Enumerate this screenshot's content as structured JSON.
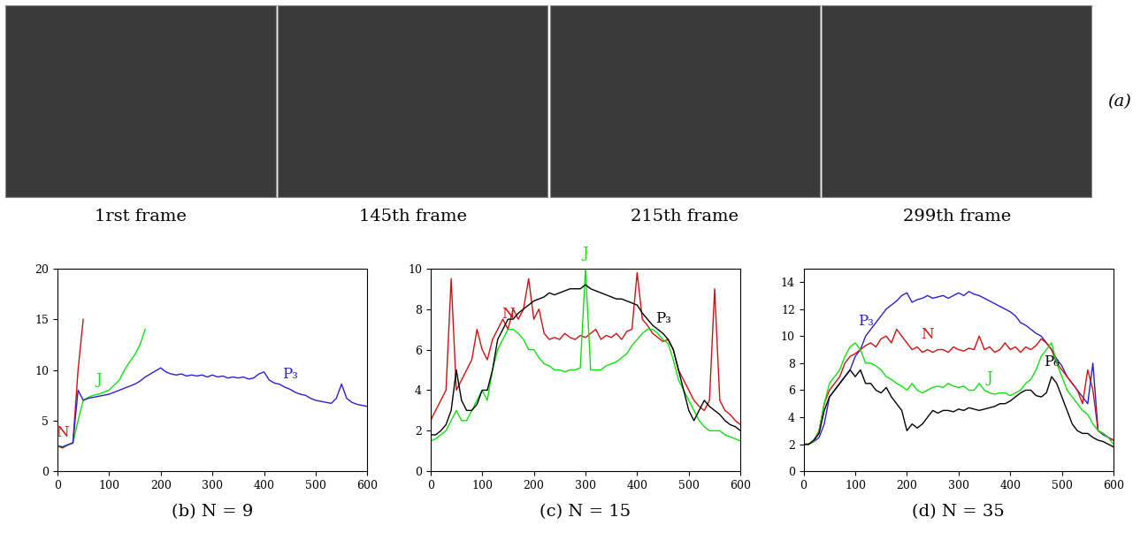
{
  "images": {
    "label": "(a)",
    "captions": [
      "1rst frame",
      "145th frame",
      "215th frame",
      "299th frame"
    ]
  },
  "chart_data": [
    {
      "type": "line",
      "title": "(b) N = 9",
      "x": [
        0,
        10,
        20,
        30,
        40,
        50,
        60,
        70,
        80,
        90,
        100,
        110,
        120,
        130,
        140,
        150,
        160,
        170,
        180,
        190,
        200,
        210,
        220,
        230,
        240,
        250,
        260,
        270,
        280,
        290,
        300,
        310,
        320,
        330,
        340,
        350,
        360,
        370,
        380,
        390,
        400,
        410,
        420,
        430,
        440,
        450,
        460,
        470,
        480,
        490,
        500,
        510,
        520,
        530,
        540,
        550,
        560,
        570,
        580,
        590,
        600
      ],
      "xlim": [
        0,
        600
      ],
      "xticks": [
        0,
        100,
        200,
        300,
        400,
        500,
        600
      ],
      "ylim": [
        0,
        20
      ],
      "yticks": [
        0,
        5,
        10,
        15,
        20
      ],
      "series": [
        {
          "name": "N",
          "color": "#d01010",
          "values": [
            2.5,
            2.3,
            2.6,
            2.8,
            10,
            15,
            null,
            null,
            null,
            null,
            null,
            null,
            null,
            null,
            null,
            null,
            null,
            null,
            null,
            null,
            null,
            null,
            null,
            null,
            null,
            null,
            null,
            null,
            null,
            null,
            null,
            null,
            null,
            null,
            null,
            null,
            null,
            null,
            null,
            null,
            null,
            null,
            null,
            null,
            null,
            null,
            null,
            null,
            null,
            null,
            null,
            null,
            null,
            null,
            null,
            null,
            null,
            null,
            null,
            null,
            null
          ]
        },
        {
          "name": "J",
          "color": "#10e010",
          "values": [
            2.5,
            2.4,
            2.6,
            2.8,
            5,
            7,
            7.3,
            7.5,
            7.6,
            7.8,
            8,
            8.5,
            9,
            10,
            10.8,
            11.5,
            12.5,
            14,
            null,
            null,
            null,
            null,
            null,
            null,
            null,
            null,
            null,
            null,
            null,
            null,
            null,
            null,
            null,
            null,
            null,
            null,
            null,
            null,
            null,
            null,
            null,
            null,
            null,
            null,
            null,
            null,
            null,
            null,
            null,
            null,
            null,
            null,
            null,
            null,
            null,
            null,
            null,
            null,
            null,
            null,
            null
          ]
        },
        {
          "name": "P₃",
          "color": "#2b1fd0",
          "values": [
            2.5,
            2.4,
            2.6,
            2.8,
            8,
            7,
            7.2,
            7.3,
            7.4,
            7.5,
            7.6,
            7.8,
            8,
            8.2,
            8.4,
            8.6,
            8.9,
            9.3,
            9.6,
            9.9,
            10.2,
            9.8,
            9.6,
            9.5,
            9.6,
            9.4,
            9.5,
            9.4,
            9.5,
            9.3,
            9.5,
            9.3,
            9.4,
            9.2,
            9.3,
            9.2,
            9.3,
            9.1,
            9.2,
            9.6,
            9.8,
            9.0,
            8.7,
            8.6,
            8.3,
            8.1,
            7.8,
            7.6,
            7.5,
            7.2,
            7.0,
            6.9,
            6.8,
            6.7,
            7.2,
            8.6,
            7.2,
            6.8,
            6.6,
            6.5,
            6.4
          ]
        }
      ]
    },
    {
      "type": "line",
      "title": "(c) N = 15",
      "x": [
        0,
        10,
        20,
        30,
        40,
        50,
        60,
        70,
        80,
        90,
        100,
        110,
        120,
        130,
        140,
        150,
        160,
        170,
        180,
        190,
        200,
        210,
        220,
        230,
        240,
        250,
        260,
        270,
        280,
        290,
        300,
        310,
        320,
        330,
        340,
        350,
        360,
        370,
        380,
        390,
        400,
        410,
        420,
        430,
        440,
        450,
        460,
        470,
        480,
        490,
        500,
        510,
        520,
        530,
        540,
        550,
        560,
        570,
        580,
        590,
        600
      ],
      "xlim": [
        0,
        600
      ],
      "xticks": [
        0,
        100,
        200,
        300,
        400,
        500,
        600
      ],
      "ylim": [
        0,
        10
      ],
      "yticks": [
        0,
        2,
        4,
        6,
        8,
        10
      ],
      "series": [
        {
          "name": "N",
          "color": "#d01010",
          "values": [
            2.5,
            3,
            3.5,
            4,
            9.5,
            4,
            4.5,
            5,
            5.5,
            7,
            6,
            5.5,
            6.5,
            7,
            7.5,
            7,
            8,
            7.5,
            8,
            9.5,
            7.5,
            8,
            6.8,
            6.5,
            6.6,
            6.5,
            6.8,
            6.6,
            6.5,
            6.7,
            6.6,
            6.8,
            7,
            6.5,
            6.7,
            6.6,
            6.8,
            6.5,
            6.9,
            7,
            9.8,
            7.5,
            7.2,
            6.8,
            6.6,
            6.4,
            6.5,
            6,
            5,
            4.5,
            4,
            3.5,
            3.2,
            3,
            3.5,
            9,
            3.5,
            3,
            2.8,
            2.5,
            2.3
          ]
        },
        {
          "name": "J",
          "color": "#10e010",
          "values": [
            1.5,
            1.6,
            1.8,
            2,
            2.5,
            3,
            2.5,
            2.5,
            3,
            3.5,
            4,
            3.5,
            5,
            6,
            6.5,
            7,
            7,
            6.8,
            6.5,
            6,
            6,
            5.6,
            5.3,
            5.2,
            5,
            5,
            4.9,
            5,
            5,
            5.1,
            10,
            5,
            5,
            5,
            5.2,
            5.3,
            5.4,
            5.6,
            5.8,
            6.2,
            6.5,
            6.8,
            7,
            7,
            6.8,
            6.5,
            6.3,
            5.5,
            4.5,
            4,
            3.5,
            3,
            2.5,
            2.2,
            2,
            2,
            2,
            1.8,
            1.7,
            1.6,
            1.5
          ]
        },
        {
          "name": "P₃",
          "color": "#000000",
          "values": [
            1.8,
            1.8,
            2,
            2.3,
            3,
            5,
            3.5,
            3,
            3,
            3.3,
            4,
            4,
            5,
            6.5,
            7,
            7.5,
            7.5,
            7.8,
            8,
            8.2,
            8.4,
            8.5,
            8.6,
            8.8,
            8.7,
            8.8,
            8.9,
            9,
            9,
            9,
            9.2,
            9,
            8.9,
            8.8,
            8.7,
            8.6,
            8.5,
            8.5,
            8.4,
            8.3,
            8.2,
            7.8,
            7.5,
            7.2,
            7,
            6.8,
            6.5,
            6,
            5,
            4,
            3,
            2.5,
            3,
            3.5,
            3.2,
            3,
            2.8,
            2.5,
            2.3,
            2.2,
            2
          ]
        }
      ]
    },
    {
      "type": "line",
      "title": "(d) N = 35",
      "x": [
        0,
        10,
        20,
        30,
        40,
        50,
        60,
        70,
        80,
        90,
        100,
        110,
        120,
        130,
        140,
        150,
        160,
        170,
        180,
        190,
        200,
        210,
        220,
        230,
        240,
        250,
        260,
        270,
        280,
        290,
        300,
        310,
        320,
        330,
        340,
        350,
        360,
        370,
        380,
        390,
        400,
        410,
        420,
        430,
        440,
        450,
        460,
        470,
        480,
        490,
        500,
        510,
        520,
        530,
        540,
        550,
        560,
        570,
        580,
        590,
        600
      ],
      "xlim": [
        0,
        600
      ],
      "xticks": [
        0,
        100,
        200,
        300,
        400,
        500,
        600
      ],
      "ylim": [
        0,
        15
      ],
      "yticks": [
        0,
        2,
        4,
        6,
        8,
        10,
        12,
        14
      ],
      "series": [
        {
          "name": "P₃",
          "color": "#2b1fd0",
          "values": [
            2,
            2,
            2.2,
            2.5,
            3.5,
            5.5,
            6,
            6.5,
            7,
            7.5,
            8.5,
            9,
            10,
            10.5,
            11,
            11.5,
            12,
            12.3,
            12.6,
            13,
            13.2,
            12.5,
            12.7,
            12.8,
            13,
            12.8,
            12.9,
            13,
            12.8,
            13,
            13.2,
            13,
            13.3,
            13.1,
            13,
            12.8,
            12.6,
            12.4,
            12.2,
            12,
            11.8,
            11.5,
            11,
            10.8,
            10.5,
            10.2,
            10,
            9.5,
            9,
            8.3,
            7.8,
            7,
            6.5,
            6,
            5.5,
            5,
            8,
            3,
            2.7,
            2.5,
            2.3
          ]
        },
        {
          "name": "N",
          "color": "#d01010",
          "values": [
            2,
            2,
            2.3,
            3,
            5,
            6,
            6.5,
            7,
            8,
            8.5,
            8.7,
            9,
            9.3,
            9.5,
            9.2,
            9.8,
            10,
            9.5,
            10.5,
            10,
            9.5,
            9,
            9.2,
            8.8,
            9,
            8.8,
            9,
            9,
            8.8,
            9.2,
            9,
            8.9,
            9.1,
            9,
            10,
            9,
            9.2,
            8.8,
            9,
            9.5,
            9,
            9.2,
            8.8,
            9.2,
            9,
            9.3,
            9.8,
            9.5,
            9,
            8,
            7.5,
            7,
            6.5,
            6,
            5,
            7.5,
            6,
            3,
            2.8,
            2.5,
            2.3
          ]
        },
        {
          "name": "J",
          "color": "#10e010",
          "values": [
            2,
            2,
            2.2,
            3,
            5,
            6.5,
            7,
            7.5,
            8.5,
            9.2,
            9.5,
            9,
            8,
            8,
            7.8,
            7.5,
            7,
            6.8,
            6.5,
            6.3,
            6,
            6.5,
            6,
            5.8,
            6,
            6.2,
            6.3,
            6.2,
            6.5,
            6.3,
            6.2,
            6.3,
            6,
            6,
            6.5,
            6,
            5.8,
            5.7,
            5.8,
            5.8,
            5.6,
            5.8,
            6,
            6.5,
            6.8,
            7.5,
            8.5,
            9,
            9.5,
            8,
            7,
            6,
            5.5,
            5,
            4.5,
            4.2,
            3.5,
            3,
            2.8,
            2.5,
            2
          ]
        },
        {
          "name": "P₆",
          "color": "#000000",
          "values": [
            2,
            2,
            2.3,
            2.8,
            4.5,
            5.5,
            6,
            6.5,
            7,
            7.5,
            7,
            7.5,
            6.5,
            6.5,
            6,
            5.8,
            6.2,
            5.5,
            5,
            4.5,
            3,
            3.5,
            3.2,
            3.5,
            4,
            4.5,
            4.3,
            4.5,
            4.5,
            4.4,
            4.6,
            4.5,
            4.7,
            4.6,
            4.5,
            4.6,
            4.7,
            4.8,
            5,
            5,
            5.2,
            5.5,
            5.8,
            6,
            6,
            5.6,
            5.5,
            5.8,
            7,
            6.5,
            5.5,
            4.5,
            3.5,
            3,
            2.8,
            2.8,
            2.5,
            2.3,
            2.2,
            2,
            1.8
          ]
        }
      ]
    }
  ]
}
